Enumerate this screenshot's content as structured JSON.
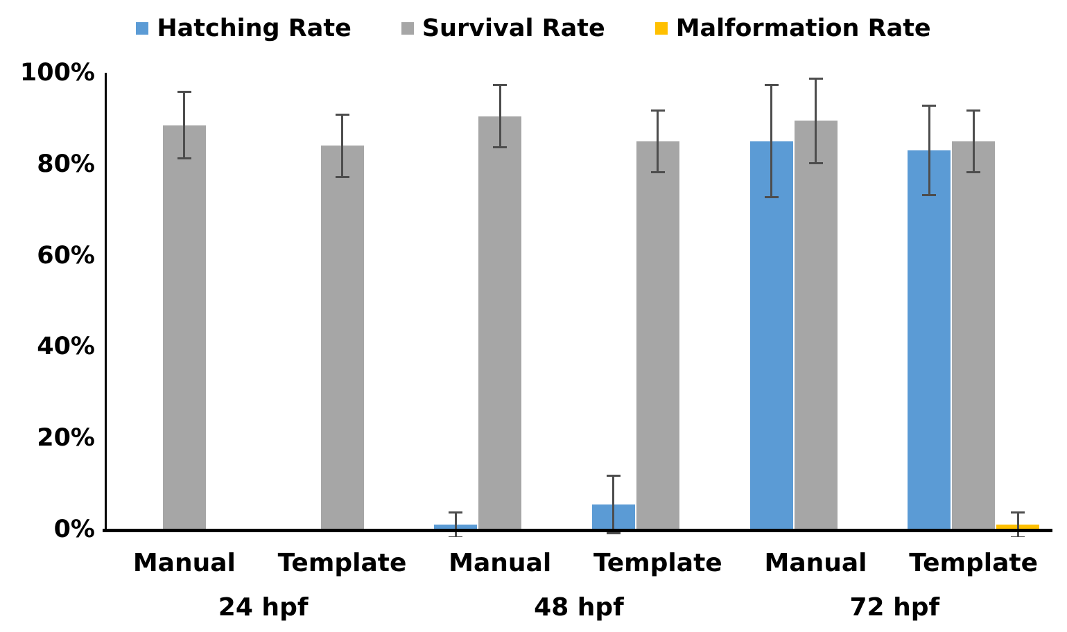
{
  "chart_data": {
    "type": "bar",
    "title": "",
    "groups": [
      "24 hpf",
      "48 hpf",
      "72 hpf"
    ],
    "categories": [
      "Manual",
      "Template",
      "Manual",
      "Template",
      "Manual",
      "Template"
    ],
    "series": [
      {
        "name": "Hatching Rate",
        "color": "#5B9BD5",
        "values": [
          0,
          0,
          1,
          5.5,
          85,
          83
        ],
        "errors": [
          0,
          0,
          3,
          6.5,
          12.5,
          10
        ]
      },
      {
        "name": "Survival Rate",
        "color": "#A6A6A6",
        "values": [
          88.5,
          84,
          90.5,
          85,
          89.5,
          85
        ],
        "errors": [
          7.5,
          7,
          7,
          7,
          9.5,
          7
        ]
      },
      {
        "name": "Malformation Rate",
        "color": "#FFC000",
        "values": [
          0,
          0,
          0,
          0,
          0,
          1
        ],
        "errors": [
          0,
          0,
          0,
          0,
          0,
          3
        ]
      }
    ],
    "yticks": [
      "0%",
      "20%",
      "40%",
      "60%",
      "80%",
      "100%"
    ],
    "ylim": [
      0,
      100
    ],
    "xlabel": "",
    "ylabel": "",
    "grid": false,
    "legend_position": "top",
    "error_bar_color": "#4D4D4D",
    "axis_color": "#000000",
    "background": "#FFFFFF"
  }
}
